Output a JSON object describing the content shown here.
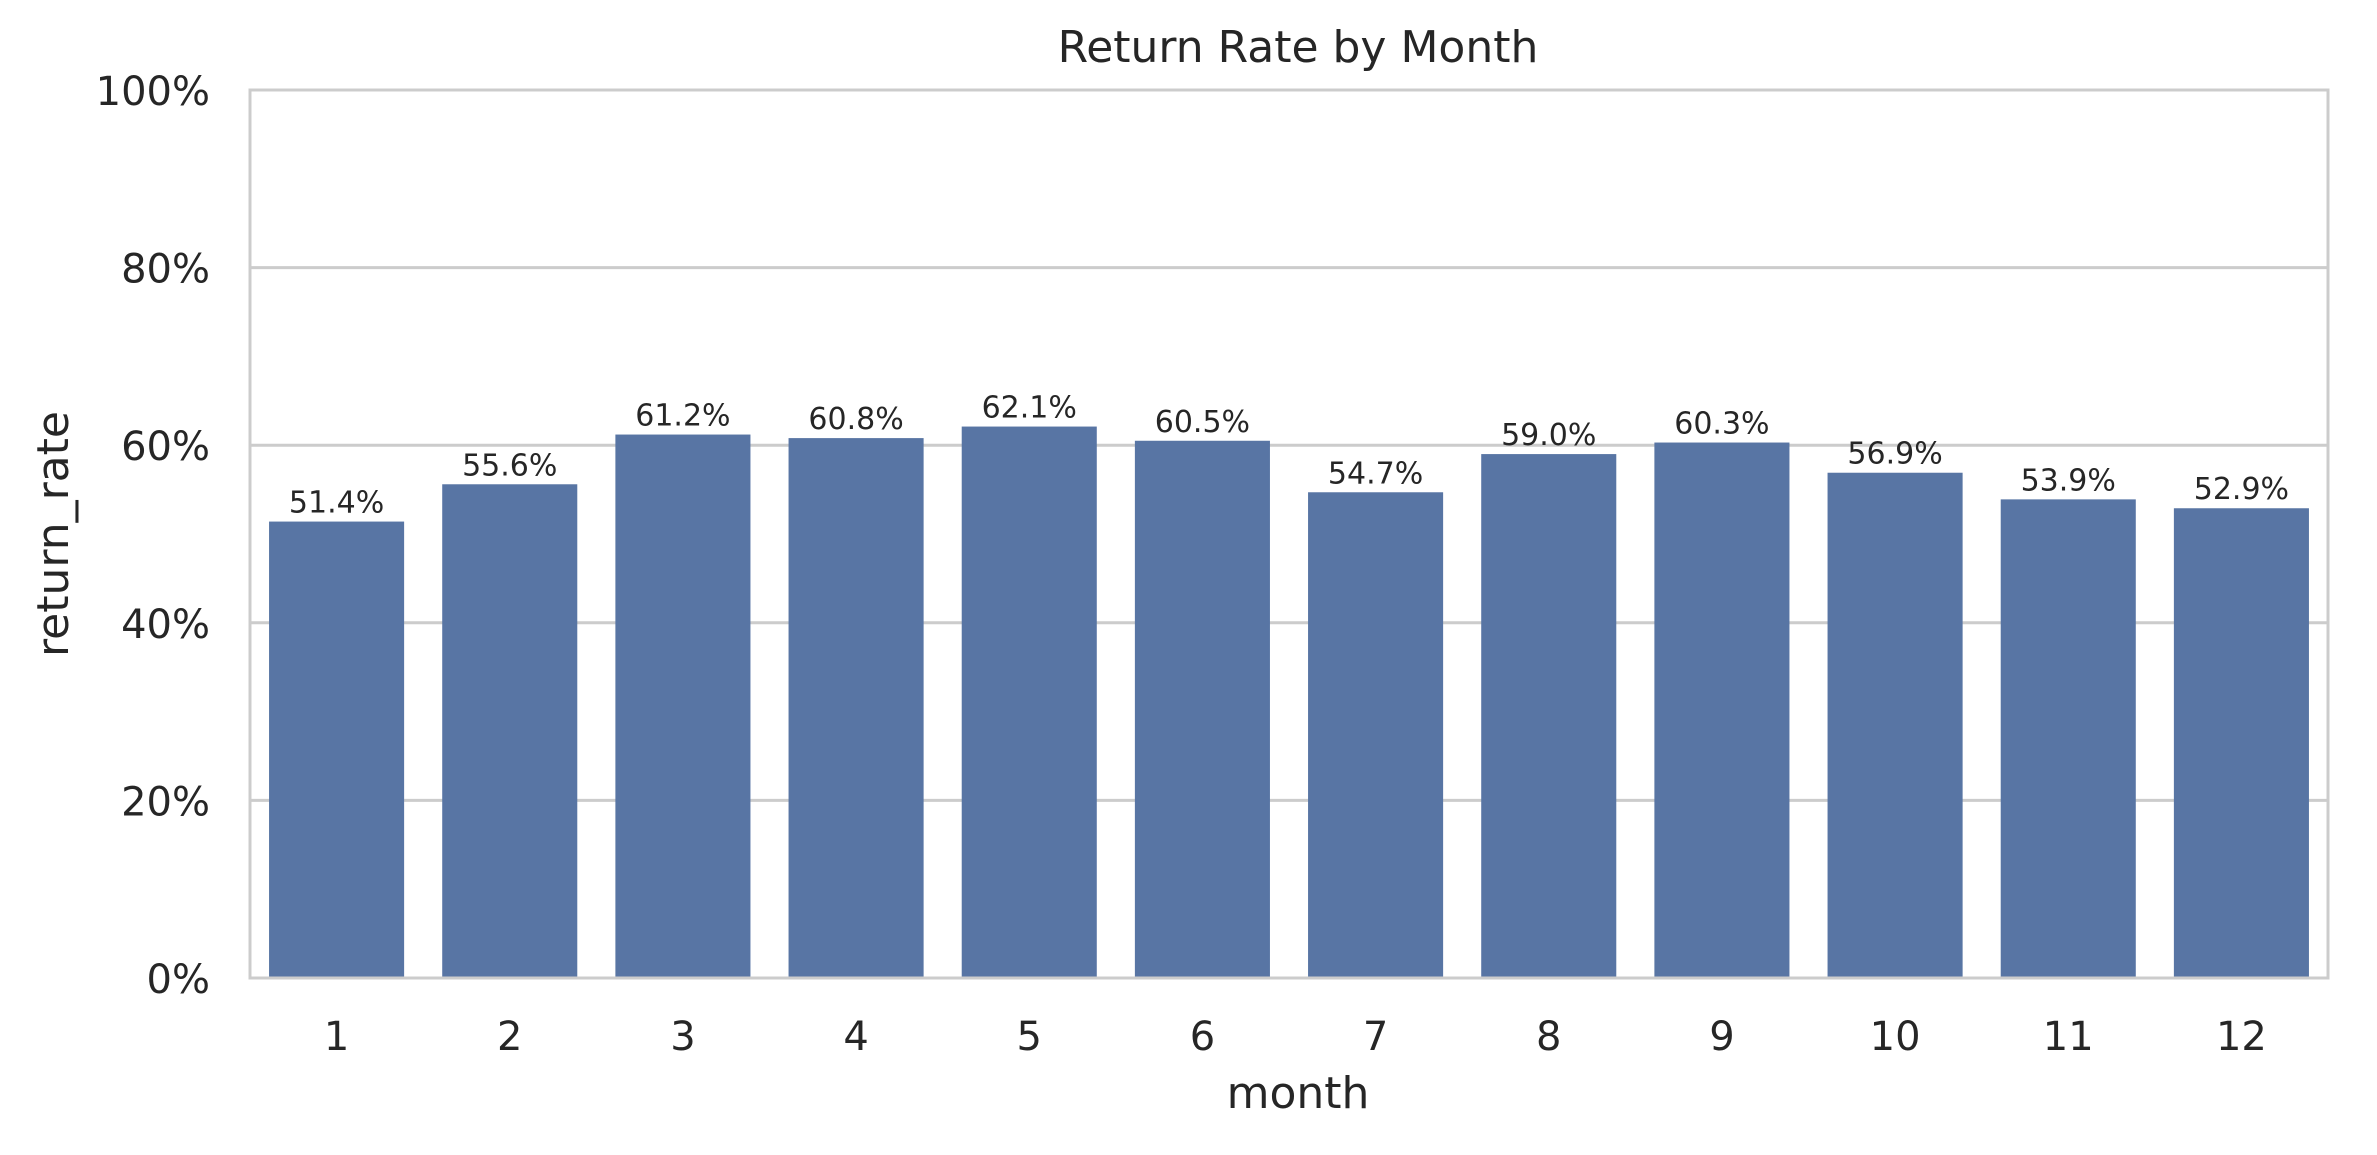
{
  "chart_data": {
    "type": "bar",
    "title": "Return Rate by Month",
    "xlabel": "month",
    "ylabel": "return_rate",
    "categories": [
      "1",
      "2",
      "3",
      "4",
      "5",
      "6",
      "7",
      "8",
      "9",
      "10",
      "11",
      "12"
    ],
    "values": [
      51.4,
      55.6,
      61.2,
      60.8,
      62.1,
      60.5,
      54.7,
      59.0,
      60.3,
      56.9,
      53.9,
      52.9
    ],
    "value_labels": [
      "51.4%",
      "55.6%",
      "61.2%",
      "60.8%",
      "62.1%",
      "60.5%",
      "54.7%",
      "59.0%",
      "60.3%",
      "56.9%",
      "53.9%",
      "52.9%"
    ],
    "ylim": [
      0,
      100
    ],
    "yticks": [
      0,
      20,
      40,
      60,
      80,
      100
    ],
    "ytick_labels": [
      "0%",
      "20%",
      "40%",
      "60%",
      "80%",
      "100%"
    ],
    "grid": "horizontal",
    "colors": {
      "bar": "#5875a4",
      "grid": "#cccccc",
      "frame": "#cccccc",
      "text": "#262626"
    }
  }
}
